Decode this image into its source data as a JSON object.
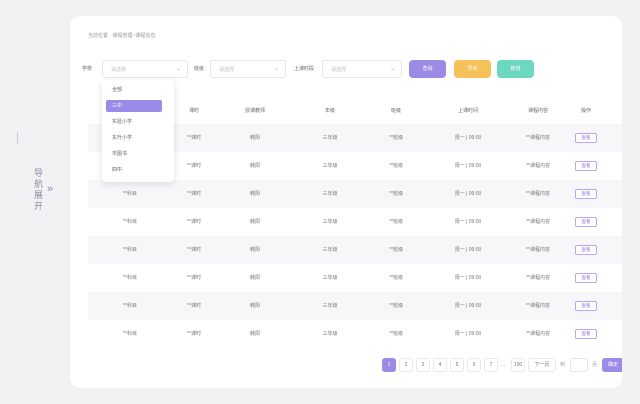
{
  "side_nav": {
    "toggle_label": "导航展开",
    "chevron": "»"
  },
  "breadcrumb": {
    "current": "当前位置",
    "path": "课程管理~课程信息"
  },
  "filters": {
    "school_label": "学校",
    "school_placeholder": "请选择",
    "class_label": "班级",
    "class_placeholder": "请选择",
    "time_label": "上课时段",
    "time_placeholder": "请选择",
    "caret": "⌄"
  },
  "buttons": {
    "query": "查询",
    "export": "导出",
    "add": "新增"
  },
  "dropdown": {
    "items": [
      "全部",
      "三中",
      "实验小学",
      "东升小学",
      "市图书",
      "四中"
    ],
    "selected_index": 1
  },
  "table": {
    "headers": [
      "",
      "课时",
      "授课教师",
      "年级",
      "班级",
      "上课时间",
      "课程内容",
      "操作"
    ],
    "rows": [
      [
        "",
        "**课时",
        "韩阳",
        "三年级",
        "**班级",
        "周一 | 09:00",
        "**课程内容",
        "查看"
      ],
      [
        "",
        "**课时",
        "韩阳",
        "三年级",
        "**班级",
        "周一 | 09:00",
        "**课程内容",
        "查看"
      ],
      [
        "**科目",
        "**课时",
        "韩阳",
        "三年级",
        "**班级",
        "周一 | 09:00",
        "**课程内容",
        "查看"
      ],
      [
        "**科目",
        "**课时",
        "韩阳",
        "三年级",
        "**班级",
        "周一 | 09:00",
        "**课程内容",
        "查看"
      ],
      [
        "**科目",
        "**课时",
        "韩阳",
        "三年级",
        "**班级",
        "周一 | 09:00",
        "**课程内容",
        "查看"
      ],
      [
        "**科目",
        "**课时",
        "韩阳",
        "三年级",
        "**班级",
        "周一 | 09:00",
        "**课程内容",
        "查看"
      ],
      [
        "**科目",
        "**课时",
        "韩阳",
        "三年级",
        "**班级",
        "周一 | 09:00",
        "**课程内容",
        "查看"
      ],
      [
        "**科目",
        "**课时",
        "韩阳",
        "三年级",
        "**班级",
        "周一 | 09:00",
        "**课程内容",
        "查看"
      ]
    ]
  },
  "pagination": {
    "pages": [
      "1",
      "2",
      "3",
      "4",
      "5",
      "6",
      "7"
    ],
    "current_page": "1",
    "ellipsis": "...",
    "last_page": "100",
    "next_label": "下一页",
    "goto_prefix": "到",
    "goto_suffix": "页",
    "confirm_label": "确定"
  },
  "colors": {
    "accent": "#9b8ae6",
    "export": "#f7c15a",
    "add": "#6dd8c0"
  }
}
